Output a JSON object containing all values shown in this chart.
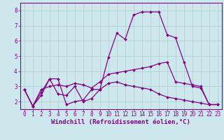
{
  "background_color": "#cde8ec",
  "grid_color": "#a8cdd4",
  "line_color": "#880088",
  "xlim": [
    -0.5,
    23.5
  ],
  "ylim": [
    1.5,
    8.5
  ],
  "yticks": [
    2,
    3,
    4,
    5,
    6,
    7,
    8
  ],
  "xticks": [
    0,
    1,
    2,
    3,
    4,
    5,
    6,
    7,
    8,
    9,
    10,
    11,
    12,
    13,
    14,
    15,
    16,
    17,
    18,
    19,
    20,
    21,
    22,
    23
  ],
  "xlabel": "Windchill (Refroidissement éolien,°C)",
  "line1_x": [
    0,
    1,
    2,
    3,
    4,
    5,
    6,
    7,
    8,
    9,
    10,
    11,
    12,
    13,
    14,
    15,
    16,
    17,
    18,
    19,
    20,
    21,
    22,
    23
  ],
  "line1_y": [
    2.8,
    1.7,
    2.4,
    3.5,
    3.5,
    1.8,
    2.0,
    2.1,
    2.8,
    2.8,
    4.9,
    6.5,
    6.1,
    7.7,
    7.9,
    7.9,
    7.9,
    6.4,
    6.2,
    4.6,
    3.0,
    2.9,
    1.8,
    1.8
  ],
  "line2_x": [
    0,
    1,
    2,
    3,
    4,
    5,
    6,
    7,
    8,
    9,
    10,
    11,
    12,
    13,
    14,
    15,
    16,
    17,
    18,
    19,
    20,
    21,
    22,
    23
  ],
  "line2_y": [
    2.8,
    1.7,
    2.8,
    3.0,
    3.1,
    3.0,
    3.2,
    3.1,
    2.9,
    3.3,
    3.8,
    3.9,
    4.0,
    4.1,
    4.2,
    4.3,
    4.5,
    4.6,
    3.3,
    3.2,
    3.1,
    3.0,
    1.8,
    1.8
  ],
  "line3_x": [
    0,
    1,
    2,
    3,
    4,
    5,
    6,
    7,
    8,
    9,
    10,
    11,
    12,
    13,
    14,
    15,
    16,
    17,
    18,
    19,
    20,
    21,
    22,
    23
  ],
  "line3_y": [
    2.8,
    1.7,
    2.6,
    3.5,
    2.5,
    2.4,
    3.0,
    2.0,
    2.2,
    2.8,
    3.2,
    3.3,
    3.1,
    3.0,
    2.9,
    2.8,
    2.5,
    2.3,
    2.2,
    2.1,
    2.0,
    1.9,
    1.8,
    1.8
  ],
  "marker": "D",
  "markersize": 2.0,
  "linewidth": 0.9,
  "tick_fontsize": 5.5,
  "xlabel_fontsize": 6.5,
  "spine_color": "#880088"
}
